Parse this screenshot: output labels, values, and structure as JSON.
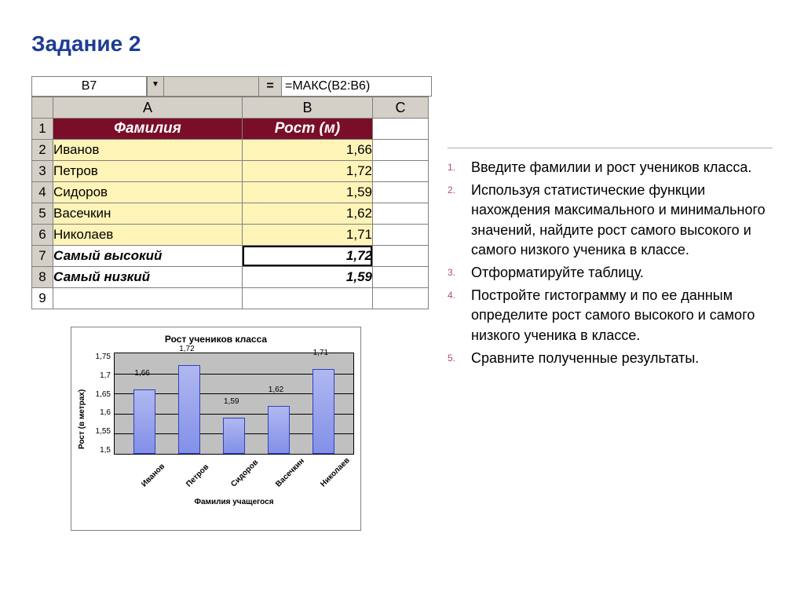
{
  "title": "Задание 2",
  "formula_bar": {
    "cell_ref": "B7",
    "eq": "=",
    "formula": "=МАКС(B2:B6)"
  },
  "sheet": {
    "col_headers": [
      "A",
      "B",
      "C"
    ],
    "row_numbers": [
      "1",
      "2",
      "3",
      "4",
      "5",
      "6",
      "7",
      "8",
      "9"
    ],
    "header_row": {
      "a": "Фамилия",
      "b": "Рост (м)"
    },
    "data_rows": [
      {
        "a": "Иванов",
        "b": "1,66"
      },
      {
        "a": "Петров",
        "b": "1,72"
      },
      {
        "a": "Сидоров",
        "b": "1,59"
      },
      {
        "a": "Васечкин",
        "b": "1,62"
      },
      {
        "a": "Николаев",
        "b": "1,71"
      }
    ],
    "summary_rows": [
      {
        "a": "Самый высокий",
        "b": "1,72",
        "selected": true
      },
      {
        "a": "Самый низкий",
        "b": "1,59"
      }
    ],
    "colors": {
      "header_bg": "#7a0e28",
      "header_fg": "#ffffff",
      "data_bg": "#fff4b8",
      "grid_bg": "#d4d0c8",
      "border": "#808080"
    }
  },
  "chart": {
    "type": "bar",
    "title": "Рост учеников класса",
    "y_label": "Рост (в метрах)",
    "x_label": "Фамилия учащегося",
    "ylim": [
      1.5,
      1.75
    ],
    "ytick_step": 0.05,
    "yticks": [
      "1,75",
      "1,7",
      "1,65",
      "1,6",
      "1,55",
      "1,5"
    ],
    "categories": [
      "Иванов",
      "Петров",
      "Сидоров",
      "Васечкин",
      "Николаев"
    ],
    "values": [
      1.66,
      1.72,
      1.59,
      1.62,
      1.71
    ],
    "value_labels": [
      "1,66",
      "1,72",
      "1,59",
      "1,62",
      "1,71"
    ],
    "bar_color": "#8290e8",
    "plot_bg": "#c0c0c0",
    "grid_color": "#000000",
    "label_fontsize": 10,
    "title_fontsize": 12
  },
  "instructions": [
    "Введите фамилии и рост учеников класса.",
    "Используя статистические функции нахождения максимального и минимального значений, найдите рост самого высокого и самого низкого ученика в классе.",
    "Отформатируйте таблицу.",
    "Постройте гистограмму и по ее данным определите рост самого высокого и самого низкого ученика в классе.",
    "Сравните полученные результаты."
  ]
}
